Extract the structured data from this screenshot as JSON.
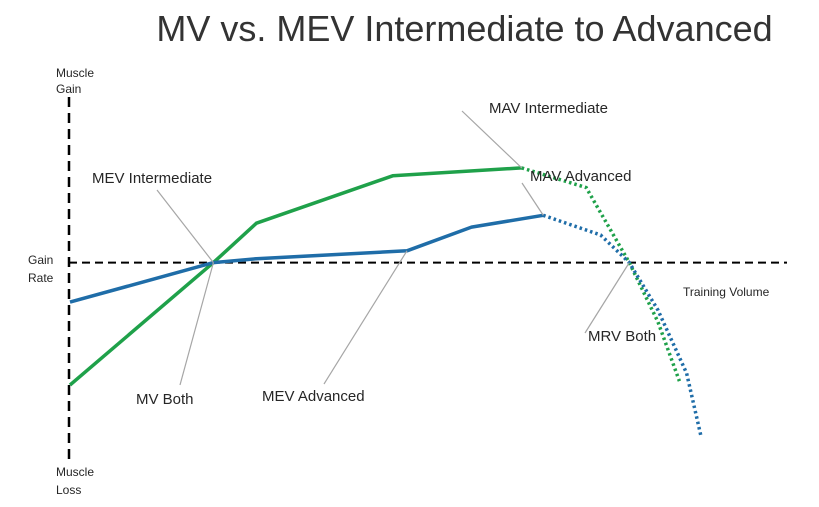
{
  "chart_data": {
    "type": "line",
    "title": "MV vs. MEV Intermediate to Advanced",
    "y_axis_labels": {
      "top": [
        "Muscle",
        "Gain"
      ],
      "middle": [
        "Gain",
        "Rate"
      ],
      "bottom": [
        "Muscle",
        "Loss"
      ]
    },
    "xlabel": "Training Volume",
    "xlim": [
      0,
      100
    ],
    "ylim": [
      -50,
      45
    ],
    "grid": false,
    "legend": "none",
    "baseline_y": 0,
    "series": [
      {
        "color": "#1fa14a",
        "values": [
          [
            0,
            -31
          ],
          [
            20,
            0
          ],
          [
            26,
            10
          ],
          [
            45,
            22
          ],
          [
            63,
            24
          ]
        ],
        "dotted_values": [
          [
            63,
            24
          ],
          [
            72,
            19
          ],
          [
            78,
            0
          ],
          [
            82,
            -15
          ],
          [
            85,
            -30
          ]
        ]
      },
      {
        "color": "#1f6da8",
        "values": [
          [
            0,
            -10
          ],
          [
            20,
            0
          ],
          [
            26,
            1
          ],
          [
            47,
            3
          ],
          [
            56,
            9
          ],
          [
            66,
            12
          ]
        ],
        "dotted_values": [
          [
            66,
            12
          ],
          [
            74,
            7
          ],
          [
            78,
            0
          ],
          [
            82,
            -12
          ],
          [
            86,
            -28
          ],
          [
            88,
            -44
          ]
        ]
      }
    ],
    "annotations": [
      {
        "label": "MAV Intermediate",
        "target": [
          63,
          24
        ]
      },
      {
        "label": "MEV Intermediate",
        "target": [
          20,
          0
        ]
      },
      {
        "label": "MAV Advanced",
        "target": [
          66,
          12
        ]
      },
      {
        "label": "MV Both",
        "target": [
          20,
          0
        ]
      },
      {
        "label": "MEV Advanced",
        "target": [
          47,
          3
        ]
      },
      {
        "label": "MRV Both",
        "target": [
          78,
          0
        ]
      }
    ]
  }
}
